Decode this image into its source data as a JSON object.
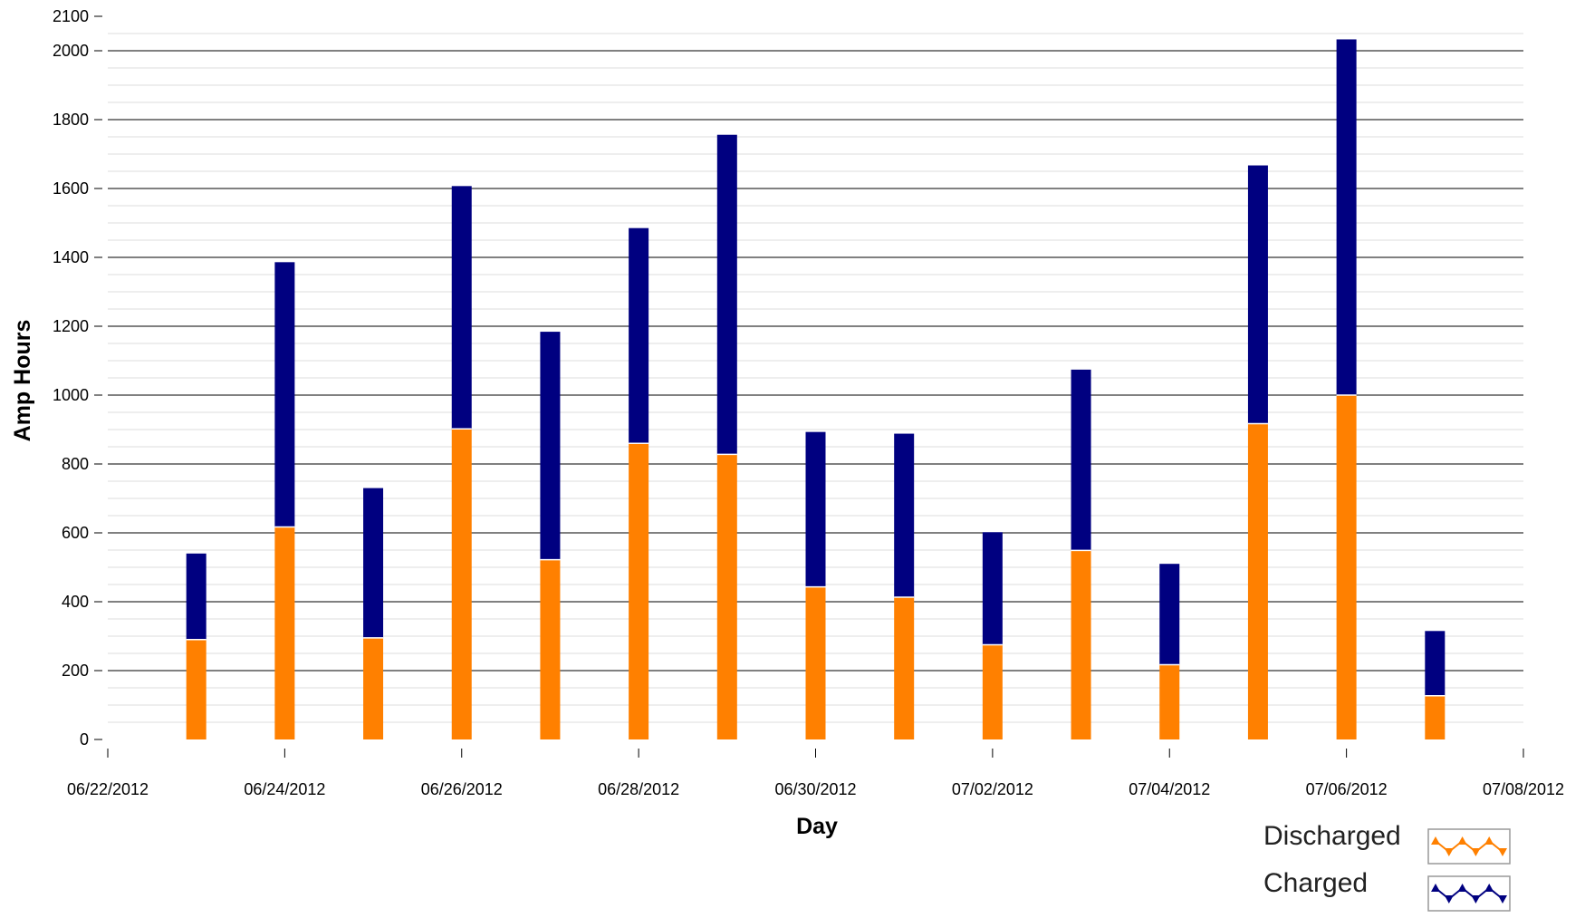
{
  "chart_data": {
    "type": "bar",
    "stacked": true,
    "xlabel": "Day",
    "ylabel": "Amp Hours",
    "ylim": [
      -50,
      2100
    ],
    "yticks": [
      0,
      200,
      400,
      600,
      800,
      1000,
      1200,
      1400,
      1600,
      1800,
      2000,
      2100
    ],
    "y_major_gridlines": [
      200,
      400,
      600,
      800,
      1000,
      1200,
      1400,
      1600,
      1800,
      2000
    ],
    "y_minor_grid_step": 50,
    "xlim": [
      "06/22/2012",
      "07/08/2012"
    ],
    "xticks": [
      "06/22/2012",
      "06/24/2012",
      "06/26/2012",
      "06/28/2012",
      "06/30/2012",
      "07/02/2012",
      "07/04/2012",
      "07/06/2012",
      "07/08/2012"
    ],
    "categories": [
      "06/23/2012",
      "06/24/2012",
      "06/25/2012",
      "06/26/2012",
      "06/27/2012",
      "06/28/2012",
      "06/29/2012",
      "06/30/2012",
      "07/01/2012",
      "07/02/2012",
      "07/03/2012",
      "07/04/2012",
      "07/05/2012",
      "07/06/2012",
      "07/07/2012"
    ],
    "series": [
      {
        "name": "Discharged",
        "color": "#ff8000",
        "values": [
          290,
          617,
          295,
          902,
          522,
          860,
          828,
          443,
          413,
          275,
          549,
          217,
          917,
          1000,
          127
        ]
      },
      {
        "name": "Charged",
        "color": "#000080",
        "values": [
          250,
          769,
          435,
          705,
          662,
          625,
          928,
          450,
          475,
          327,
          525,
          293,
          750,
          1033,
          188
        ]
      }
    ],
    "legend": {
      "position": "bottom-right",
      "entries": [
        "Discharged",
        "Charged"
      ]
    },
    "grid": true
  }
}
